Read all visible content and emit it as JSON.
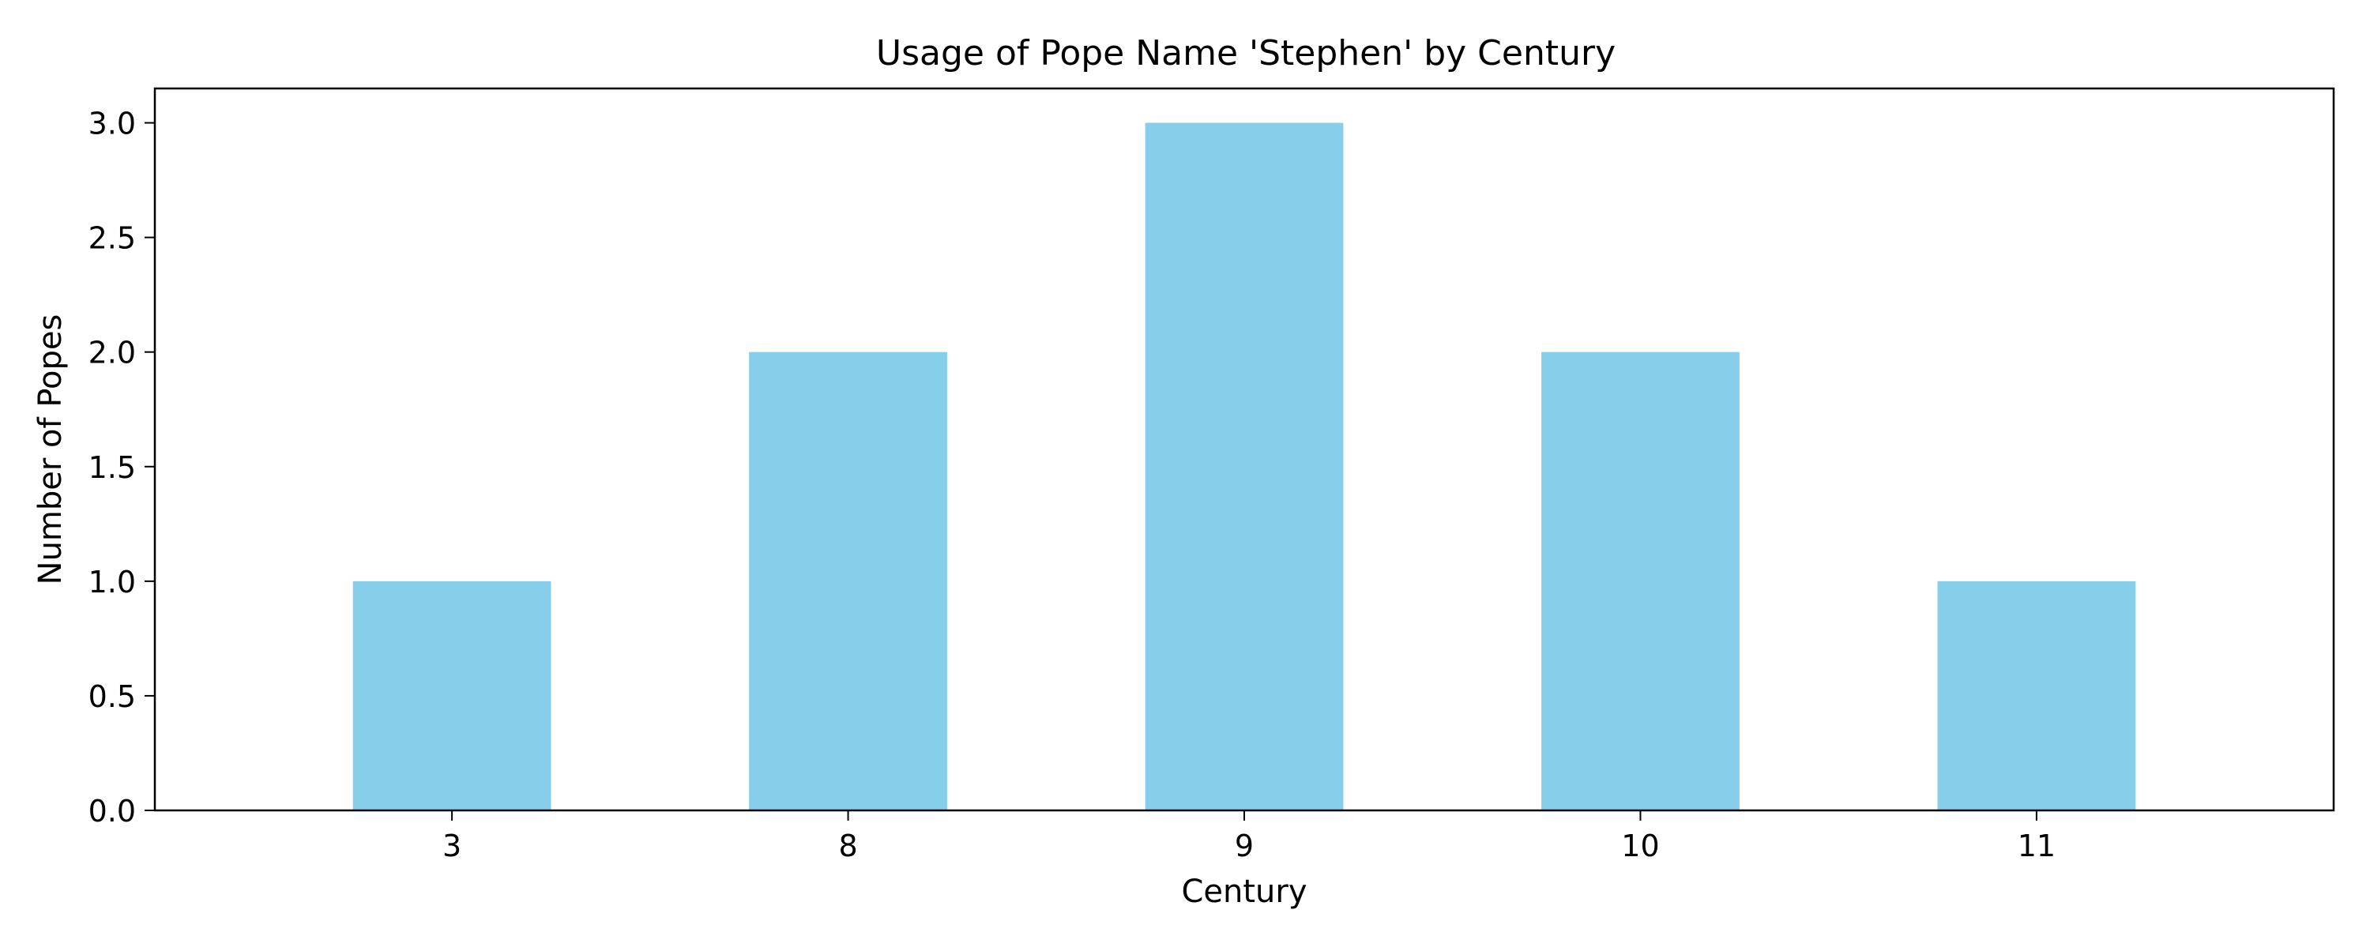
{
  "chart_data": {
    "type": "bar",
    "title": "Usage of Pope Name 'Stephen' by Century",
    "xlabel": "Century",
    "ylabel": "Number of Popes",
    "categories": [
      "3",
      "8",
      "9",
      "10",
      "11"
    ],
    "values": [
      1,
      2,
      3,
      2,
      1
    ],
    "ylim": [
      0,
      3.15
    ],
    "yticks": [
      "0.0",
      "0.5",
      "1.0",
      "1.5",
      "2.0",
      "2.5",
      "3.0"
    ],
    "bar_color": "#87CEEB",
    "grid": false,
    "legend": "none"
  }
}
